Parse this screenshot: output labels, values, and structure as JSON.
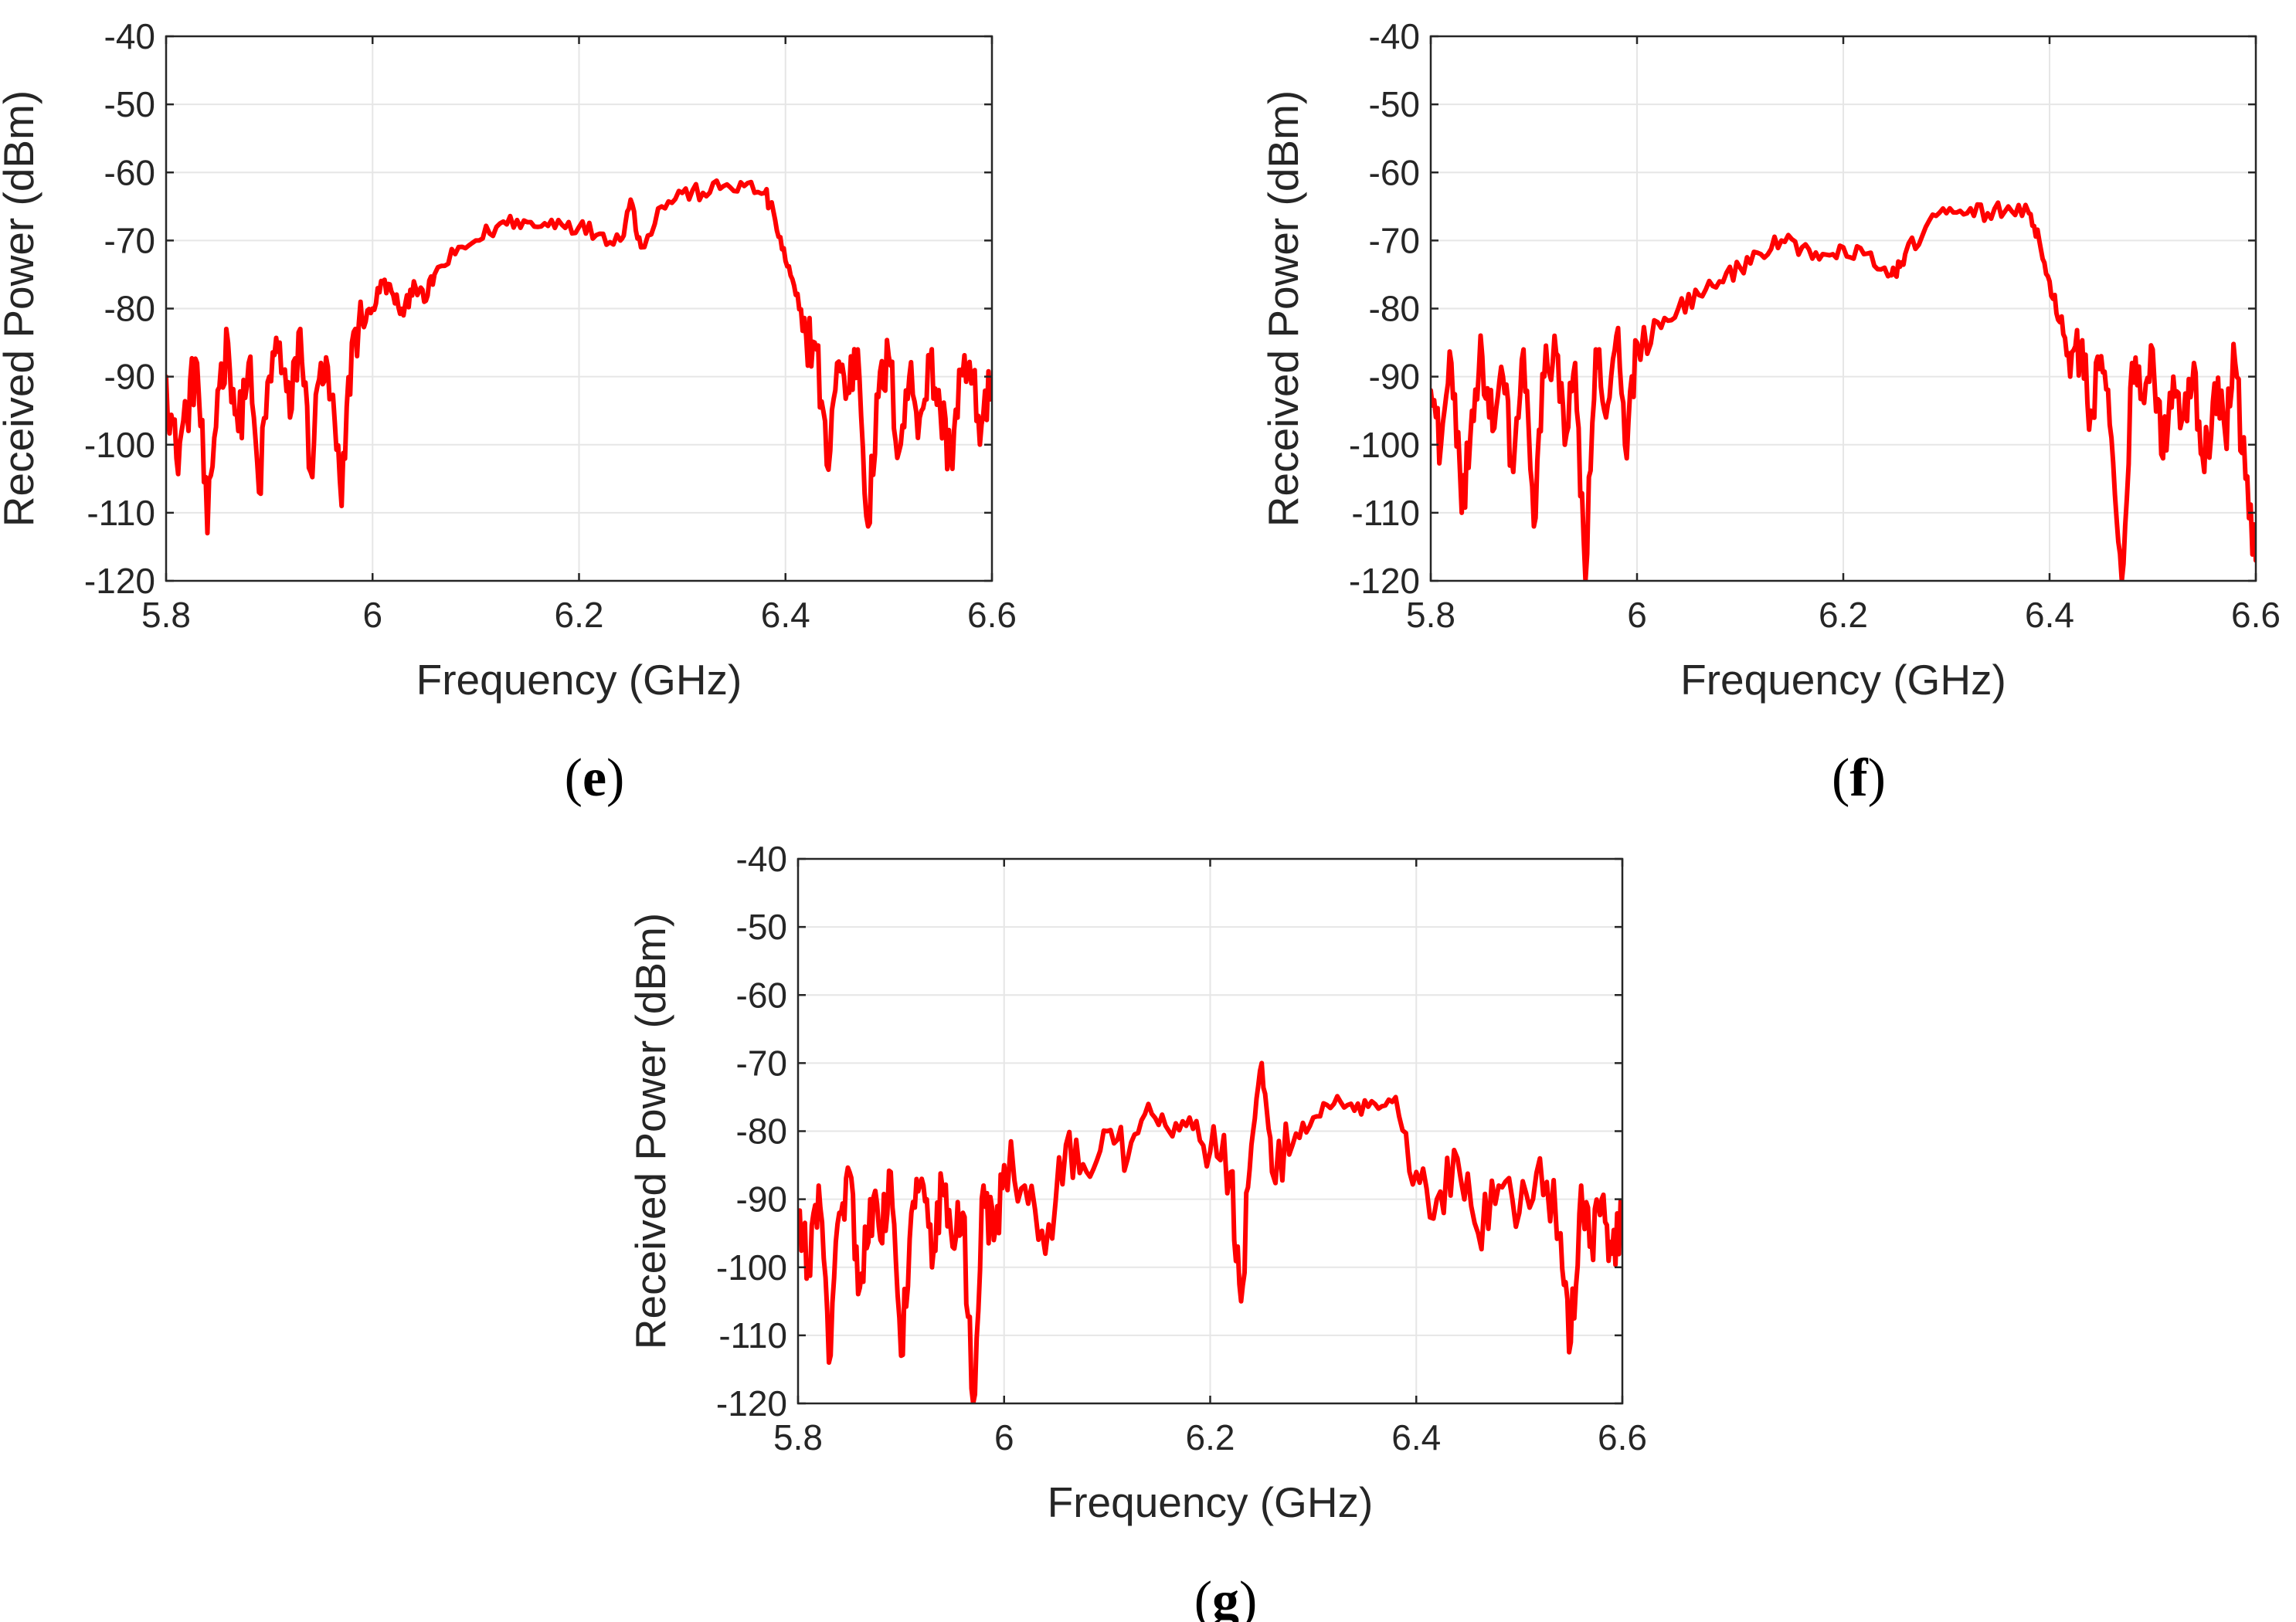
{
  "colors": {
    "series": "#ff0000",
    "axis": "#262626",
    "grid": "#e6e6e6"
  },
  "chart_data": [
    {
      "id": "e",
      "type": "line",
      "caption": "e",
      "xlabel": "Frequency (GHz)",
      "ylabel": "Received Power (dBm)",
      "xlim": [
        5.8,
        6.6
      ],
      "ylim": [
        -120,
        -40
      ],
      "xticks": [
        5.8,
        6.0,
        6.2,
        6.4,
        6.6
      ],
      "xtick_labels": [
        "5.8",
        "6",
        "6.2",
        "6.4",
        "6.6"
      ],
      "yticks": [
        -40,
        -50,
        -60,
        -70,
        -80,
        -90,
        -100,
        -110,
        -120
      ],
      "ytick_labels": [
        "-40",
        "-50",
        "-60",
        "-70",
        "-80",
        "-90",
        "-100",
        "-110",
        "-120"
      ],
      "grid": true,
      "series": [
        {
          "name": "Received power",
          "color": "#ff0000",
          "x": [
            5.8,
            5.81,
            5.82,
            5.83,
            5.84,
            5.85,
            5.86,
            5.87,
            5.88,
            5.89,
            5.9,
            5.91,
            5.92,
            5.93,
            5.94,
            5.95,
            5.96,
            5.97,
            5.98,
            5.99,
            6.0,
            6.01,
            6.02,
            6.03,
            6.04,
            6.05,
            6.06,
            6.08,
            6.1,
            6.12,
            6.14,
            6.16,
            6.18,
            6.2,
            6.22,
            6.24,
            6.25,
            6.26,
            6.28,
            6.3,
            6.32,
            6.34,
            6.36,
            6.38,
            6.39,
            6.4,
            6.41,
            6.42,
            6.43,
            6.44,
            6.45,
            6.46,
            6.47,
            6.48,
            6.49,
            6.5,
            6.51,
            6.52,
            6.53,
            6.54,
            6.55,
            6.56,
            6.57,
            6.58,
            6.59,
            6.6
          ],
          "y": [
            -90,
            -102,
            -95,
            -88,
            -113,
            -92,
            -85,
            -98,
            -88,
            -107,
            -90,
            -85,
            -96,
            -83,
            -104,
            -88,
            -93,
            -109,
            -85,
            -82,
            -80,
            -76,
            -78,
            -81,
            -76,
            -79,
            -75,
            -72,
            -70,
            -68,
            -67,
            -68,
            -67,
            -68,
            -69,
            -70,
            -64,
            -71,
            -65,
            -63,
            -63,
            -62,
            -62,
            -63,
            -67,
            -73,
            -78,
            -84,
            -86,
            -103,
            -88,
            -92,
            -86,
            -112,
            -93,
            -87,
            -101,
            -90,
            -96,
            -88,
            -95,
            -102,
            -89,
            -91,
            -97,
            -92
          ]
        }
      ]
    },
    {
      "id": "f",
      "type": "line",
      "caption": "f",
      "xlabel": "Frequency (GHz)",
      "ylabel": "Received Power (dBm)",
      "xlim": [
        5.8,
        6.6
      ],
      "ylim": [
        -120,
        -40
      ],
      "xticks": [
        5.8,
        6.0,
        6.2,
        6.4,
        6.6
      ],
      "xtick_labels": [
        "5.8",
        "6",
        "6.2",
        "6.4",
        "6.6"
      ],
      "yticks": [
        -40,
        -50,
        -60,
        -70,
        -80,
        -90,
        -100,
        -110,
        -120
      ],
      "ytick_labels": [
        "-40",
        "-50",
        "-60",
        "-70",
        "-80",
        "-90",
        "-100",
        "-110",
        "-120"
      ],
      "grid": true,
      "series": [
        {
          "name": "Received power",
          "color": "#ff0000",
          "x": [
            5.8,
            5.81,
            5.82,
            5.83,
            5.84,
            5.85,
            5.86,
            5.87,
            5.88,
            5.89,
            5.9,
            5.91,
            5.92,
            5.93,
            5.94,
            5.95,
            5.96,
            5.97,
            5.98,
            5.99,
            6.0,
            6.02,
            6.04,
            6.06,
            6.08,
            6.1,
            6.12,
            6.14,
            6.16,
            6.18,
            6.2,
            6.22,
            6.24,
            6.25,
            6.26,
            6.28,
            6.3,
            6.32,
            6.34,
            6.36,
            6.38,
            6.39,
            6.4,
            6.41,
            6.42,
            6.43,
            6.44,
            6.45,
            6.46,
            6.47,
            6.48,
            6.49,
            6.5,
            6.51,
            6.52,
            6.53,
            6.54,
            6.55,
            6.56,
            6.57,
            6.58,
            6.59,
            6.6
          ],
          "y": [
            -92,
            -100,
            -88,
            -110,
            -95,
            -87,
            -98,
            -90,
            -104,
            -86,
            -112,
            -90,
            -84,
            -100,
            -88,
            -120,
            -86,
            -96,
            -84,
            -102,
            -85,
            -82,
            -80,
            -78,
            -76,
            -74,
            -72,
            -70,
            -71,
            -72,
            -71,
            -72,
            -74,
            -75,
            -72,
            -68,
            -66,
            -66,
            -66,
            -65,
            -66,
            -70,
            -76,
            -82,
            -90,
            -86,
            -95,
            -87,
            -99,
            -120,
            -88,
            -93,
            -86,
            -102,
            -90,
            -96,
            -88,
            -104,
            -91,
            -98,
            -88,
            -105,
            -117
          ]
        }
      ]
    },
    {
      "id": "g",
      "type": "line",
      "caption": "g",
      "xlabel": "Frequency (GHz)",
      "ylabel": "Received Power (dBm)",
      "xlim": [
        5.8,
        6.6
      ],
      "ylim": [
        -120,
        -40
      ],
      "xticks": [
        5.8,
        6.0,
        6.2,
        6.4,
        6.6
      ],
      "xtick_labels": [
        "5.8",
        "6",
        "6.2",
        "6.4",
        "6.6"
      ],
      "yticks": [
        -40,
        -50,
        -60,
        -70,
        -80,
        -90,
        -100,
        -110,
        -120
      ],
      "ytick_labels": [
        "-40",
        "-50",
        "-60",
        "-70",
        "-80",
        "-90",
        "-100",
        "-110",
        "-120"
      ],
      "grid": true,
      "series": [
        {
          "name": "Received power",
          "color": "#ff0000",
          "x": [
            5.8,
            5.81,
            5.82,
            5.83,
            5.84,
            5.85,
            5.86,
            5.87,
            5.88,
            5.89,
            5.9,
            5.91,
            5.92,
            5.93,
            5.94,
            5.95,
            5.96,
            5.97,
            5.98,
            5.99,
            6.0,
            6.02,
            6.04,
            6.06,
            6.08,
            6.1,
            6.12,
            6.14,
            6.16,
            6.18,
            6.2,
            6.22,
            6.23,
            6.24,
            6.25,
            6.26,
            6.28,
            6.3,
            6.32,
            6.34,
            6.36,
            6.38,
            6.4,
            6.42,
            6.44,
            6.46,
            6.48,
            6.5,
            6.52,
            6.54,
            6.55,
            6.56,
            6.57,
            6.58,
            6.59,
            6.6
          ],
          "y": [
            -93,
            -100,
            -88,
            -114,
            -92,
            -86,
            -103,
            -90,
            -96,
            -86,
            -113,
            -92,
            -87,
            -100,
            -88,
            -97,
            -92,
            -120,
            -88,
            -96,
            -85,
            -88,
            -98,
            -82,
            -86,
            -80,
            -84,
            -76,
            -80,
            -78,
            -83,
            -86,
            -105,
            -82,
            -70,
            -86,
            -82,
            -78,
            -76,
            -77,
            -76,
            -75,
            -86,
            -90,
            -84,
            -95,
            -88,
            -92,
            -84,
            -95,
            -111,
            -88,
            -96,
            -90,
            -98,
            -92
          ]
        }
      ]
    }
  ]
}
